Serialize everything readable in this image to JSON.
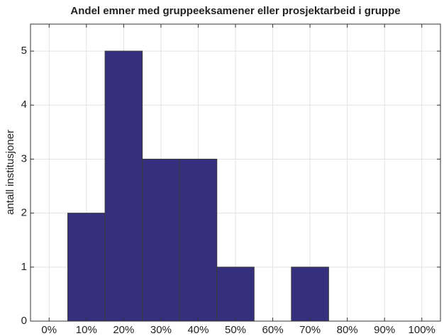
{
  "chart_data": {
    "type": "histogram",
    "title": "Andel emner med gruppeeksamener eller prosjektarbeid i gruppe",
    "ylabel": "antall institusjoner",
    "bins": [
      5,
      15,
      25,
      35,
      45,
      55,
      65,
      75
    ],
    "counts": [
      2,
      5,
      3,
      3,
      1,
      0,
      1
    ],
    "color": "#35307e",
    "xlim": [
      -5,
      105
    ],
    "xticks": [
      {
        "value": 0,
        "label": "0%"
      },
      {
        "value": 10,
        "label": "10%"
      },
      {
        "value": 20,
        "label": "20%"
      },
      {
        "value": 30,
        "label": "30%"
      },
      {
        "value": 40,
        "label": "40%"
      },
      {
        "value": 50,
        "label": "50%"
      },
      {
        "value": 60,
        "label": "60%"
      },
      {
        "value": 70,
        "label": "70%"
      },
      {
        "value": 80,
        "label": "80%"
      },
      {
        "value": 90,
        "label": "90%"
      },
      {
        "value": 100,
        "label": "100%"
      }
    ],
    "ylim": [
      0,
      5.5
    ],
    "yticks": [
      0,
      1,
      2,
      3,
      4,
      5
    ],
    "grid": true
  }
}
